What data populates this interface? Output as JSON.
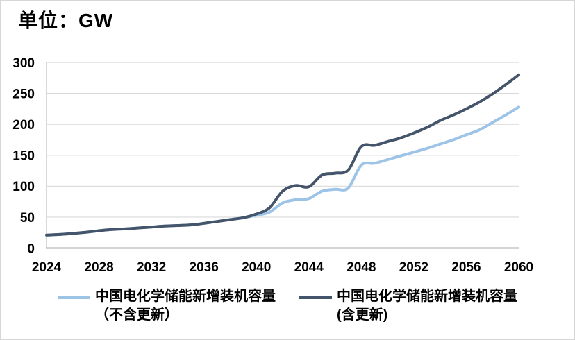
{
  "title": "单位：GW",
  "chart_data": {
    "type": "line",
    "title": "单位：GW",
    "xlabel": "",
    "ylabel": "",
    "ylim": [
      0,
      300
    ],
    "yticks": [
      0,
      50,
      100,
      150,
      200,
      250,
      300
    ],
    "xlim": [
      2024,
      2060
    ],
    "xticks": [
      2024,
      2028,
      2032,
      2036,
      2040,
      2044,
      2048,
      2052,
      2056,
      2060
    ],
    "grid": "horizontal",
    "smooth": true,
    "legend_position": "bottom",
    "x": [
      2024,
      2025,
      2026,
      2027,
      2028,
      2029,
      2030,
      2031,
      2032,
      2033,
      2034,
      2035,
      2036,
      2037,
      2038,
      2039,
      2040,
      2041,
      2042,
      2043,
      2044,
      2045,
      2046,
      2047,
      2048,
      2049,
      2050,
      2051,
      2052,
      2053,
      2054,
      2055,
      2056,
      2057,
      2058,
      2059,
      2060
    ],
    "series": [
      {
        "name": "中国电化学储能新增装机容量（不含更新）",
        "color": "#9DC3E6",
        "values": [
          21,
          22,
          23.5,
          25.5,
          28,
          30,
          31,
          32.5,
          34,
          35.5,
          36.5,
          37.5,
          40,
          43,
          46,
          49,
          53,
          58,
          73,
          78,
          80,
          92,
          95,
          97,
          134,
          137,
          143,
          149,
          155,
          161,
          168,
          175,
          183,
          191,
          203,
          215,
          228
        ]
      },
      {
        "name": "中国电化学储能新增装机容量(含更新)",
        "color": "#44546A",
        "values": [
          21,
          22,
          23.5,
          25.5,
          28,
          30,
          31,
          32.5,
          34,
          35.5,
          36.5,
          37.5,
          40,
          43,
          46,
          49,
          55,
          65,
          92,
          101,
          99,
          118,
          121,
          126,
          164,
          166,
          172,
          178,
          186,
          195,
          206,
          215,
          225,
          236,
          249,
          264,
          280
        ]
      }
    ]
  },
  "legend": {
    "items": [
      {
        "line1": "中国电化学储能新增装机容量",
        "line2": "（不含更新）",
        "color": "#9DC3E6"
      },
      {
        "line1": "中国电化学储能新增装机容量",
        "line2": "(含更新)",
        "color": "#44546A"
      }
    ]
  },
  "colors": {
    "gridline": "#D9D9D9",
    "axis_line": "#ABABAB",
    "tick_text": "#000000",
    "background": "#FFFFFF"
  }
}
